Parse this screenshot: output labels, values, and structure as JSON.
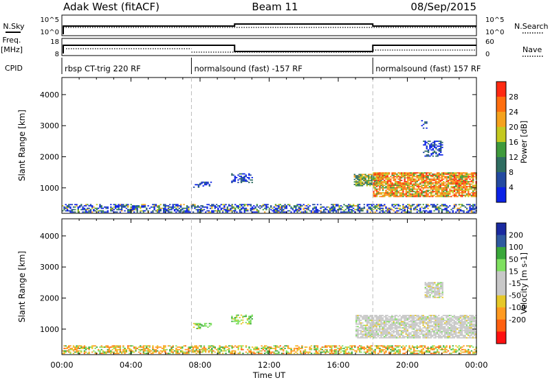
{
  "header": {
    "radar": "Adak West (fitACF)",
    "beam": "Beam 11",
    "date": "08/Sep/2015"
  },
  "sky_panel": {
    "left_label": "N.Sky",
    "right_label": "N.Search",
    "left_ticks": [
      "10^5",
      "10^0"
    ],
    "right_ticks": [
      "10^5",
      "10^0"
    ]
  },
  "freq_panel": {
    "left_label_1": "Freq.",
    "left_label_2": "[MHz]",
    "right_label": "Nave",
    "left_ticks": [
      "18",
      "8"
    ],
    "right_ticks": [
      "60",
      "0"
    ]
  },
  "cpid": {
    "label": "CPID",
    "segments": [
      {
        "start": 0.0,
        "end": 7.5,
        "text": "rbsp CT-trig 220 RF"
      },
      {
        "start": 7.5,
        "end": 18.0,
        "text": "normalsound (fast) -157 RF"
      },
      {
        "start": 18.0,
        "end": 24.0,
        "text": "normalsound (fast) 157 RF"
      }
    ]
  },
  "xaxis": {
    "title": "Time UT",
    "ticks": [
      "00:00",
      "04:00",
      "08:00",
      "12:00",
      "16:00",
      "20:00",
      "00:00"
    ]
  },
  "colors": {
    "power": [
      "#0b22e6",
      "#234aa0",
      "#2f6d61",
      "#3f9a3c",
      "#c4c920",
      "#f5a21d",
      "#ff6e0f",
      "#ff2a12",
      "#ff1414"
    ],
    "velocity": [
      "#ff1010",
      "#ff6010",
      "#ff9a20",
      "#e6c828",
      "#c8c8c8",
      "#c8c8c8",
      "#7fe060",
      "#3aa83a",
      "#2f5aa0",
      "#1a2aa0"
    ]
  },
  "chart_data": [
    {
      "type": "heatmap",
      "name": "power",
      "ylabel": "Slant Range [km]",
      "ylim": [
        180,
        4550
      ],
      "xlim": [
        0,
        24
      ],
      "yticks": [
        1000,
        2000,
        3000,
        4000
      ],
      "colorbar": {
        "title": "Power [dB]",
        "ticks": [
          "4",
          "8",
          "12",
          "16",
          "20",
          "24",
          "28"
        ]
      },
      "dashed_lines": [
        7.5,
        18.0
      ],
      "patches": [
        {
          "t0": 0.0,
          "t1": 24.0,
          "r0": 200,
          "r1": 450,
          "level": "noise"
        },
        {
          "t0": 7.6,
          "t1": 8.6,
          "r0": 1000,
          "r1": 1200,
          "level": "low"
        },
        {
          "t0": 9.8,
          "t1": 11.0,
          "r0": 1150,
          "r1": 1450,
          "level": "low"
        },
        {
          "t0": 16.9,
          "t1": 18.6,
          "r0": 1050,
          "r1": 1450,
          "level": "mid"
        },
        {
          "t0": 18.0,
          "t1": 24.0,
          "r0": 700,
          "r1": 1500,
          "level": "high"
        },
        {
          "t0": 20.9,
          "t1": 22.0,
          "r0": 2000,
          "r1": 2500,
          "level": "low"
        },
        {
          "t0": 20.8,
          "t1": 21.1,
          "r0": 2900,
          "r1": 3150,
          "level": "low"
        }
      ]
    },
    {
      "type": "heatmap",
      "name": "velocity",
      "ylabel": "Slant Range [km]",
      "ylim": [
        180,
        4550
      ],
      "xlim": [
        0,
        24
      ],
      "yticks": [
        1000,
        2000,
        3000,
        4000
      ],
      "colorbar": {
        "title": "Velocity [m s-1]",
        "ticks": [
          "200",
          "100",
          "50",
          "15",
          "-15",
          "-50",
          "-100",
          "-200"
        ]
      },
      "dashed_lines": [
        7.5,
        18.0
      ],
      "patches": [
        {
          "t0": 0.0,
          "t1": 24.0,
          "r0": 200,
          "r1": 450,
          "level": "ground"
        },
        {
          "t0": 7.6,
          "t1": 8.6,
          "r0": 1000,
          "r1": 1200,
          "level": "pos"
        },
        {
          "t0": 9.8,
          "t1": 11.0,
          "r0": 1150,
          "r1": 1450,
          "level": "pos"
        },
        {
          "t0": 17.0,
          "t1": 24.0,
          "r0": 700,
          "r1": 1450,
          "level": "zero"
        },
        {
          "t0": 21.0,
          "t1": 22.0,
          "r0": 2000,
          "r1": 2500,
          "level": "zero"
        }
      ]
    }
  ]
}
